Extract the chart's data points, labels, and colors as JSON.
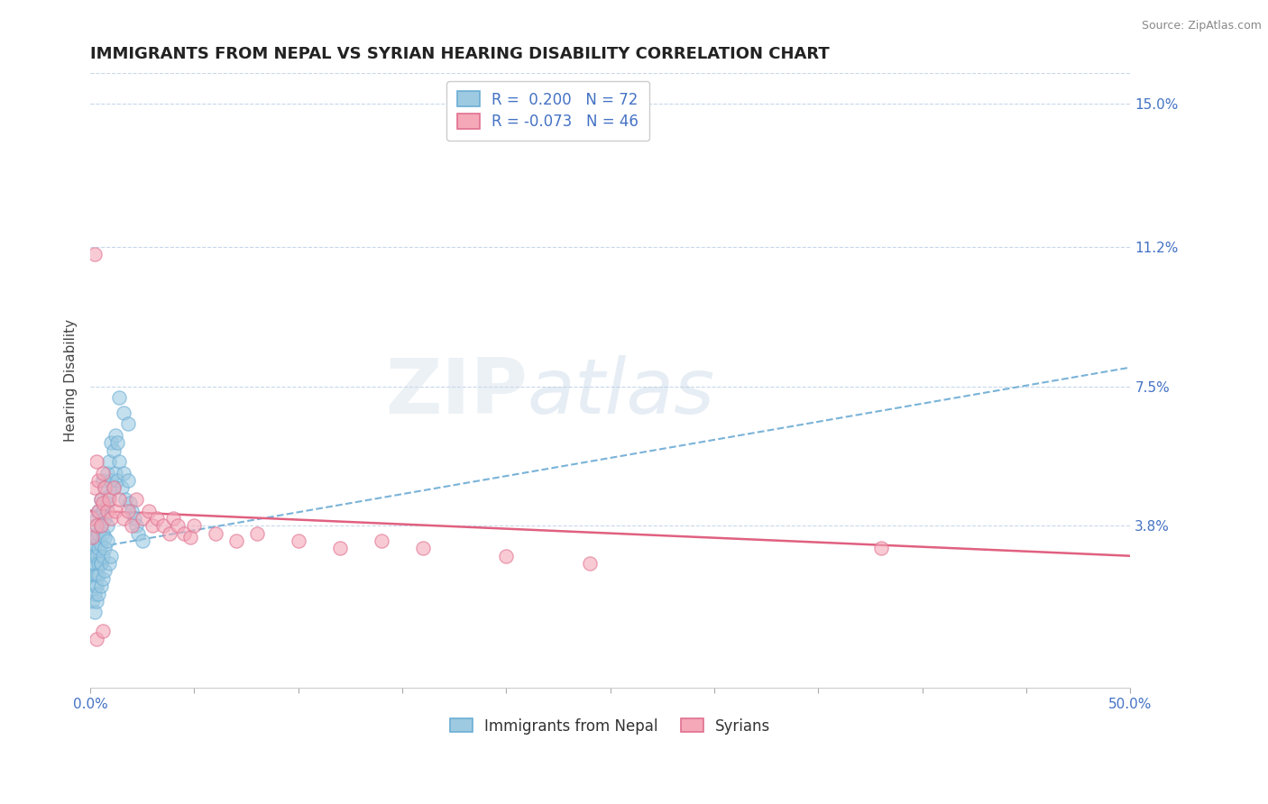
{
  "title": "IMMIGRANTS FROM NEPAL VS SYRIAN HEARING DISABILITY CORRELATION CHART",
  "source": "Source: ZipAtlas.com",
  "xlabel_nepal": "Immigrants from Nepal",
  "xlabel_syrian": "Syrians",
  "ylabel": "Hearing Disability",
  "xlim": [
    0.0,
    0.5
  ],
  "ylim": [
    -0.005,
    0.158
  ],
  "ytick_labels_right": [
    "15.0%",
    "11.2%",
    "7.5%",
    "3.8%"
  ],
  "ytick_vals_right": [
    0.15,
    0.112,
    0.075,
    0.038
  ],
  "grid_color": "#c8d8ea",
  "background_color": "#ffffff",
  "nepal_color": "#6baed6",
  "nepal_fill": "#9ecae1",
  "syrian_color": "#e07090",
  "syrian_fill": "#f4a8b8",
  "legend_R_nepal": "0.200",
  "legend_N_nepal": "72",
  "legend_R_syrian": "-0.073",
  "legend_N_syrian": "46",
  "nepal_scatter_x": [
    0.001,
    0.001,
    0.001,
    0.001,
    0.002,
    0.002,
    0.002,
    0.002,
    0.002,
    0.002,
    0.003,
    0.003,
    0.003,
    0.003,
    0.003,
    0.004,
    0.004,
    0.004,
    0.004,
    0.005,
    0.005,
    0.005,
    0.005,
    0.006,
    0.006,
    0.006,
    0.007,
    0.007,
    0.007,
    0.008,
    0.008,
    0.008,
    0.009,
    0.009,
    0.01,
    0.01,
    0.011,
    0.011,
    0.012,
    0.012,
    0.013,
    0.013,
    0.014,
    0.015,
    0.016,
    0.017,
    0.018,
    0.019,
    0.02,
    0.021,
    0.022,
    0.023,
    0.025,
    0.001,
    0.002,
    0.002,
    0.003,
    0.003,
    0.004,
    0.004,
    0.005,
    0.005,
    0.006,
    0.006,
    0.007,
    0.007,
    0.008,
    0.009,
    0.01,
    0.014,
    0.016,
    0.018
  ],
  "nepal_scatter_y": [
    0.03,
    0.025,
    0.032,
    0.028,
    0.033,
    0.03,
    0.025,
    0.035,
    0.028,
    0.022,
    0.038,
    0.035,
    0.04,
    0.03,
    0.025,
    0.042,
    0.036,
    0.032,
    0.028,
    0.045,
    0.038,
    0.033,
    0.028,
    0.05,
    0.042,
    0.036,
    0.048,
    0.04,
    0.035,
    0.052,
    0.044,
    0.038,
    0.055,
    0.046,
    0.06,
    0.05,
    0.058,
    0.048,
    0.062,
    0.052,
    0.06,
    0.05,
    0.055,
    0.048,
    0.052,
    0.045,
    0.05,
    0.044,
    0.042,
    0.04,
    0.038,
    0.036,
    0.034,
    0.018,
    0.02,
    0.015,
    0.022,
    0.018,
    0.025,
    0.02,
    0.028,
    0.022,
    0.03,
    0.024,
    0.032,
    0.026,
    0.034,
    0.028,
    0.03,
    0.072,
    0.068,
    0.065
  ],
  "syrian_scatter_x": [
    0.001,
    0.001,
    0.002,
    0.002,
    0.003,
    0.003,
    0.004,
    0.004,
    0.005,
    0.005,
    0.006,
    0.006,
    0.007,
    0.008,
    0.009,
    0.01,
    0.011,
    0.012,
    0.014,
    0.016,
    0.018,
    0.02,
    0.022,
    0.025,
    0.028,
    0.03,
    0.032,
    0.035,
    0.038,
    0.04,
    0.042,
    0.045,
    0.048,
    0.05,
    0.06,
    0.07,
    0.08,
    0.1,
    0.12,
    0.14,
    0.16,
    0.2,
    0.24,
    0.38,
    0.003,
    0.006
  ],
  "syrian_scatter_y": [
    0.04,
    0.035,
    0.048,
    0.11,
    0.055,
    0.038,
    0.05,
    0.042,
    0.045,
    0.038,
    0.052,
    0.044,
    0.048,
    0.042,
    0.045,
    0.04,
    0.048,
    0.042,
    0.045,
    0.04,
    0.042,
    0.038,
    0.045,
    0.04,
    0.042,
    0.038,
    0.04,
    0.038,
    0.036,
    0.04,
    0.038,
    0.036,
    0.035,
    0.038,
    0.036,
    0.034,
    0.036,
    0.034,
    0.032,
    0.034,
    0.032,
    0.03,
    0.028,
    0.032,
    0.008,
    0.01
  ],
  "nepal_trend_x": [
    0.0,
    0.5
  ],
  "nepal_trend_y": [
    0.032,
    0.08
  ],
  "syrian_trend_x": [
    0.0,
    0.5
  ],
  "syrian_trend_y": [
    0.042,
    0.03
  ],
  "watermark_zip": "ZIP",
  "watermark_atlas": "atlas",
  "title_fontsize": 13,
  "axis_label_fontsize": 11,
  "tick_fontsize": 11,
  "legend_fontsize": 12,
  "scatter_size": 120
}
